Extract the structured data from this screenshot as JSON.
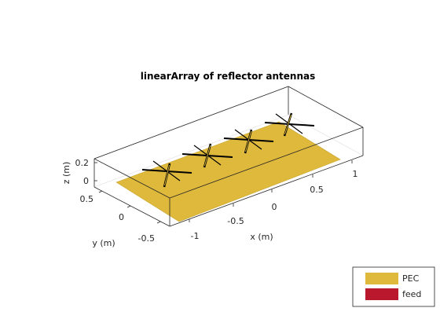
{
  "figure": {
    "title": "linearArray of reflector antennas"
  },
  "axes": {
    "x_label": "x (m)",
    "y_label": "y (m)",
    "z_label": "z (m)",
    "x_ticks": [
      "-1",
      "-0.5",
      "0",
      "0.5",
      "1"
    ],
    "y_ticks": [
      "-0.5",
      "0",
      "0.5"
    ],
    "z_ticks": [
      "0",
      "0.2"
    ]
  },
  "legend": {
    "items": [
      {
        "label": "PEC",
        "color": "#DFB93B"
      },
      {
        "label": "feed",
        "color": "#B9182D"
      }
    ]
  },
  "colors": {
    "pec": "#DFB93B",
    "dipole": "#000000"
  }
}
